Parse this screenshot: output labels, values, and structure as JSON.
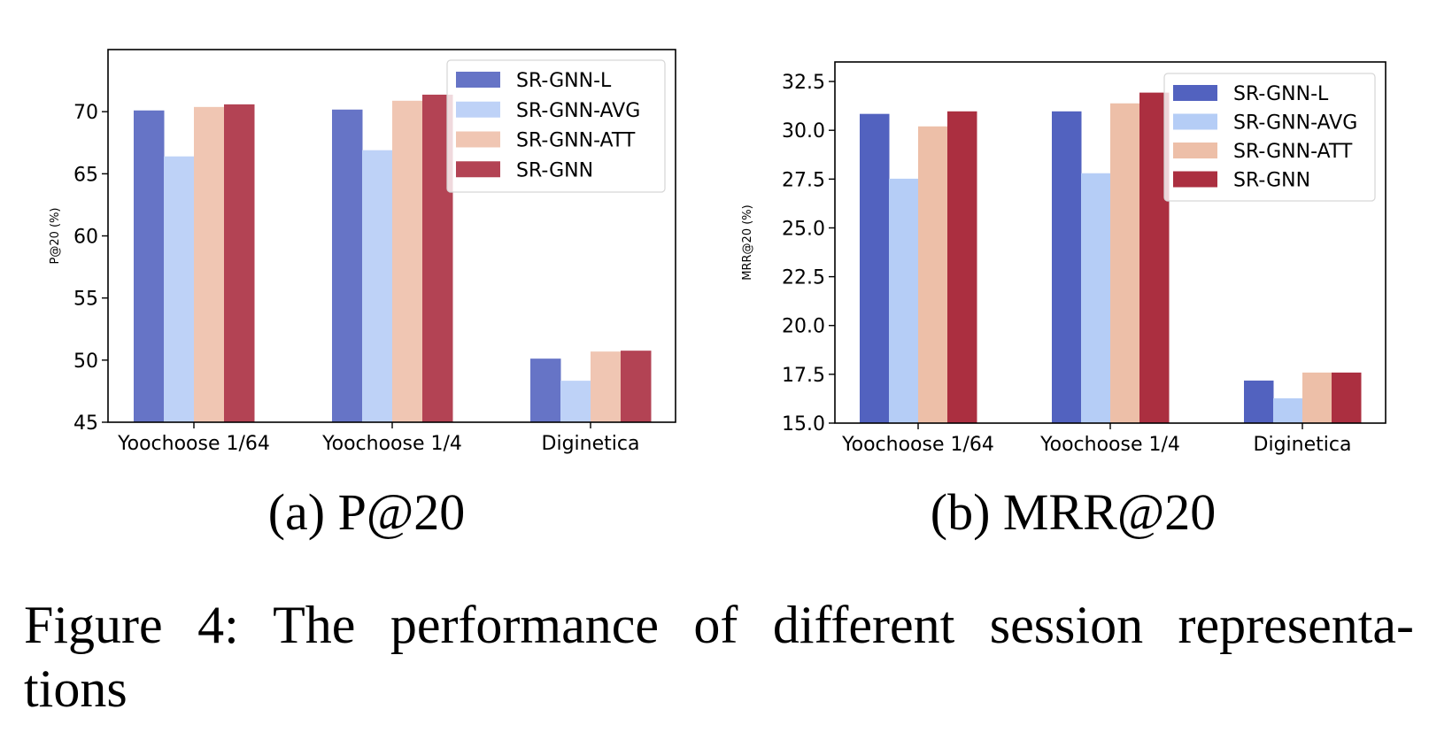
{
  "chart_data": [
    {
      "type": "bar",
      "title": "",
      "subcaption": "(a) P@20",
      "xlabel": "",
      "ylabel": "P@20 (%)",
      "categories": [
        "Yoochoose 1/64",
        "Yoochoose 1/4",
        "Diginetica"
      ],
      "ylim": [
        45,
        75
      ],
      "yticks": [
        45,
        50,
        55,
        60,
        65,
        70
      ],
      "ytick_labels": [
        "45",
        "50",
        "55",
        "60",
        "65",
        "70"
      ],
      "grid": false,
      "legend": "top-right",
      "series": [
        {
          "name": "SR-GNN-L",
          "color": "#6674c6",
          "values": [
            70.1,
            70.17,
            50.12
          ]
        },
        {
          "name": "SR-GNN-AVG",
          "color": "#bed2f7",
          "values": [
            66.4,
            66.9,
            48.34
          ]
        },
        {
          "name": "SR-GNN-ATT",
          "color": "#f0c6b3",
          "values": [
            70.38,
            70.88,
            50.69
          ]
        },
        {
          "name": "SR-GNN",
          "color": "#b34354",
          "values": [
            70.59,
            71.37,
            50.76
          ]
        }
      ]
    },
    {
      "type": "bar",
      "title": "",
      "subcaption": "(b) MRR@20",
      "xlabel": "",
      "ylabel": "MRR@20 (%)",
      "categories": [
        "Yoochoose 1/64",
        "Yoochoose 1/4",
        "Diginetica"
      ],
      "ylim": [
        15,
        33.5
      ],
      "yticks": [
        15,
        17.5,
        20,
        22.5,
        25,
        27.5,
        30,
        32.5
      ],
      "ytick_labels": [
        "15.0",
        "17.5",
        "20.0",
        "22.5",
        "25.0",
        "27.5",
        "30.0",
        "32.5"
      ],
      "grid": false,
      "legend": "top-right",
      "series": [
        {
          "name": "SR-GNN-L",
          "color": "#5262bf",
          "values": [
            30.84,
            30.97,
            17.18
          ]
        },
        {
          "name": "SR-GNN-AVG",
          "color": "#b5cdf6",
          "values": [
            27.52,
            27.8,
            16.27
          ]
        },
        {
          "name": "SR-GNN-ATT",
          "color": "#edbfa8",
          "values": [
            30.2,
            31.38,
            17.59
          ]
        },
        {
          "name": "SR-GNN",
          "color": "#ab2f40",
          "values": [
            30.97,
            31.93,
            17.59
          ]
        }
      ]
    }
  ],
  "caption": {
    "line1": "Figure 4: The performance of different session representa-",
    "line2": "tions"
  }
}
